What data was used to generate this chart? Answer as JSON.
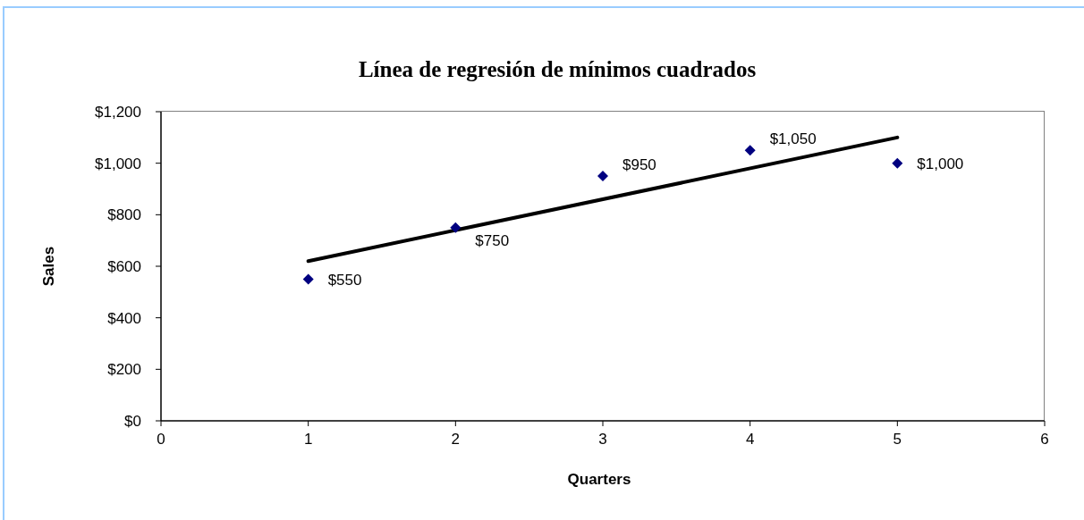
{
  "chart_data": {
    "type": "scatter",
    "title": "Línea de regresión de mínimos cuadrados",
    "xlabel": "Quarters",
    "ylabel": "Sales",
    "series": [
      {
        "x": [
          1,
          2,
          3,
          4,
          5
        ],
        "values": [
          550,
          750,
          950,
          1050,
          1000
        ],
        "color": "#000080",
        "marker": "diamond",
        "value_labels": [
          "$550",
          "$750",
          "$950",
          "$1,050",
          "$1,000"
        ]
      },
      {
        "type": "line",
        "x": [
          1,
          5
        ],
        "values": [
          620,
          1100
        ],
        "color": "#000000",
        "marker": "none",
        "line_style": "solid"
      }
    ],
    "xlim": [
      0,
      6
    ],
    "xticks": [
      0,
      1,
      2,
      3,
      4,
      5,
      6
    ],
    "ylim": [
      0,
      1200
    ],
    "yticks": [
      {
        "value": 0,
        "label": "$0"
      },
      {
        "value": 200,
        "label": "$200"
      },
      {
        "value": 400,
        "label": "$400"
      },
      {
        "value": 600,
        "label": "$600"
      },
      {
        "value": 800,
        "label": "$800"
      },
      {
        "value": 1000,
        "label": "$1,000"
      },
      {
        "value": 1200,
        "label": "$1,200"
      }
    ]
  }
}
